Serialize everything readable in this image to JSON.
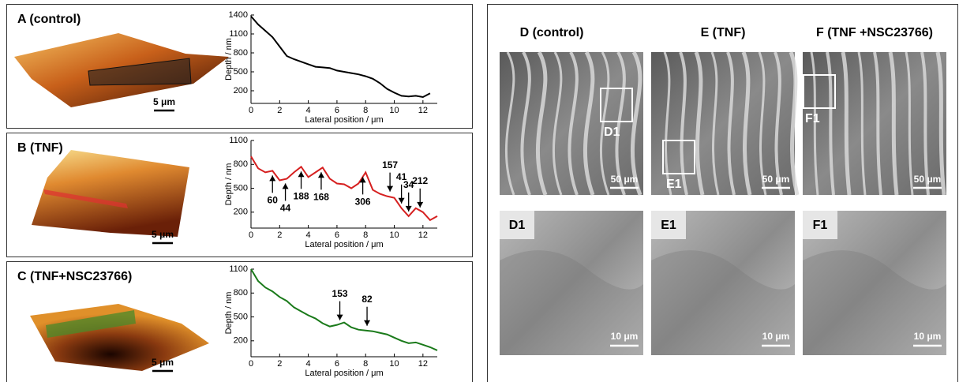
{
  "chart_data": [
    {
      "type": "line",
      "title": "A (control)",
      "x_label": "Lateral position / μm",
      "y_label": "Depth / nm",
      "x": [
        0,
        0.5,
        1,
        1.5,
        2,
        2.5,
        3,
        3.5,
        4,
        4.5,
        5,
        5.5,
        6,
        6.5,
        7,
        7.5,
        8,
        8.5,
        9,
        9.5,
        10,
        10.5,
        11,
        11.5,
        12,
        12.5
      ],
      "series": [
        {
          "color": "#000000",
          "values": [
            1380,
            1250,
            1150,
            1050,
            900,
            750,
            700,
            660,
            620,
            580,
            570,
            560,
            520,
            500,
            480,
            460,
            430,
            390,
            320,
            230,
            170,
            120,
            110,
            120,
            100,
            160
          ]
        }
      ],
      "xlim": [
        0,
        13
      ],
      "xticks": [
        0,
        2,
        4,
        6,
        8,
        10,
        12
      ],
      "ylim": [
        0,
        1400
      ],
      "yticks": [
        200,
        500,
        800,
        1100,
        1400
      ],
      "image_scale_bar": "5 μm"
    },
    {
      "type": "line",
      "title": "B (TNF)",
      "x_label": "Lateral position / μm",
      "y_label": "Depth / nm",
      "x": [
        0,
        0.5,
        1,
        1.5,
        2,
        2.5,
        3,
        3.5,
        4,
        4.5,
        5,
        5.5,
        6,
        6.5,
        7,
        7.5,
        8,
        8.5,
        9,
        9.5,
        10,
        10.5,
        11,
        11.5,
        12,
        12.5,
        13
      ],
      "series": [
        {
          "color": "#d62020",
          "values": [
            900,
            750,
            700,
            720,
            600,
            620,
            700,
            770,
            640,
            700,
            760,
            620,
            560,
            550,
            500,
            560,
            700,
            480,
            430,
            400,
            380,
            250,
            150,
            250,
            200,
            100,
            150
          ]
        }
      ],
      "xlim": [
        0,
        13
      ],
      "xticks": [
        0,
        2,
        4,
        6,
        8,
        10,
        12
      ],
      "ylim": [
        0,
        1100
      ],
      "yticks": [
        200,
        500,
        800,
        1100
      ],
      "annotations": [
        {
          "label": "60",
          "x": 1.5,
          "position": "below"
        },
        {
          "label": "44",
          "x": 2.4,
          "position": "below"
        },
        {
          "label": "188",
          "x": 3.5,
          "position": "below"
        },
        {
          "label": "168",
          "x": 4.9,
          "position": "below"
        },
        {
          "label": "306",
          "x": 7.8,
          "position": "below"
        },
        {
          "label": "157",
          "x": 9.7,
          "position": "above"
        },
        {
          "label": "41",
          "x": 10.5,
          "position": "above"
        },
        {
          "label": "34",
          "x": 11,
          "position": "above"
        },
        {
          "label": "212",
          "x": 11.8,
          "position": "above"
        }
      ],
      "image_scale_bar": "5 μm"
    },
    {
      "type": "line",
      "title": "C (TNF+NSC23766)",
      "x_label": "Lateral position / μm",
      "y_label": "Depth / nm",
      "x": [
        0,
        0.5,
        1,
        1.5,
        2,
        2.5,
        3,
        3.5,
        4,
        4.5,
        5,
        5.5,
        6,
        6.5,
        7,
        7.5,
        8,
        8.5,
        9,
        9.5,
        10,
        10.5,
        11,
        11.5,
        12,
        12.5,
        13
      ],
      "series": [
        {
          "color": "#1a7a1a",
          "values": [
            1100,
            950,
            870,
            820,
            750,
            700,
            620,
            570,
            520,
            480,
            420,
            380,
            400,
            430,
            370,
            340,
            330,
            320,
            300,
            280,
            240,
            200,
            170,
            180,
            150,
            120,
            80
          ]
        }
      ],
      "xlim": [
        0,
        13
      ],
      "xticks": [
        0,
        2,
        4,
        6,
        8,
        10,
        12
      ],
      "ylim": [
        0,
        1100
      ],
      "yticks": [
        200,
        500,
        800,
        1100
      ],
      "annotations": [
        {
          "label": "153",
          "x": 6.2,
          "position": "above"
        },
        {
          "label": "82",
          "x": 8.1,
          "position": "above"
        }
      ],
      "image_scale_bar": "5 μm"
    }
  ],
  "sem": {
    "columns": [
      {
        "title": "D (control)",
        "overview_scale_bar": "50 μm",
        "inset": "D1",
        "detail_scale_bar": "10 μm"
      },
      {
        "title": "E (TNF)",
        "overview_scale_bar": "50 μm",
        "inset": "E1",
        "detail_scale_bar": "10 μm"
      },
      {
        "title": "F (TNF +NSC23766)",
        "overview_scale_bar": "50 μm",
        "inset": "F1",
        "detail_scale_bar": "10 μm"
      }
    ]
  }
}
